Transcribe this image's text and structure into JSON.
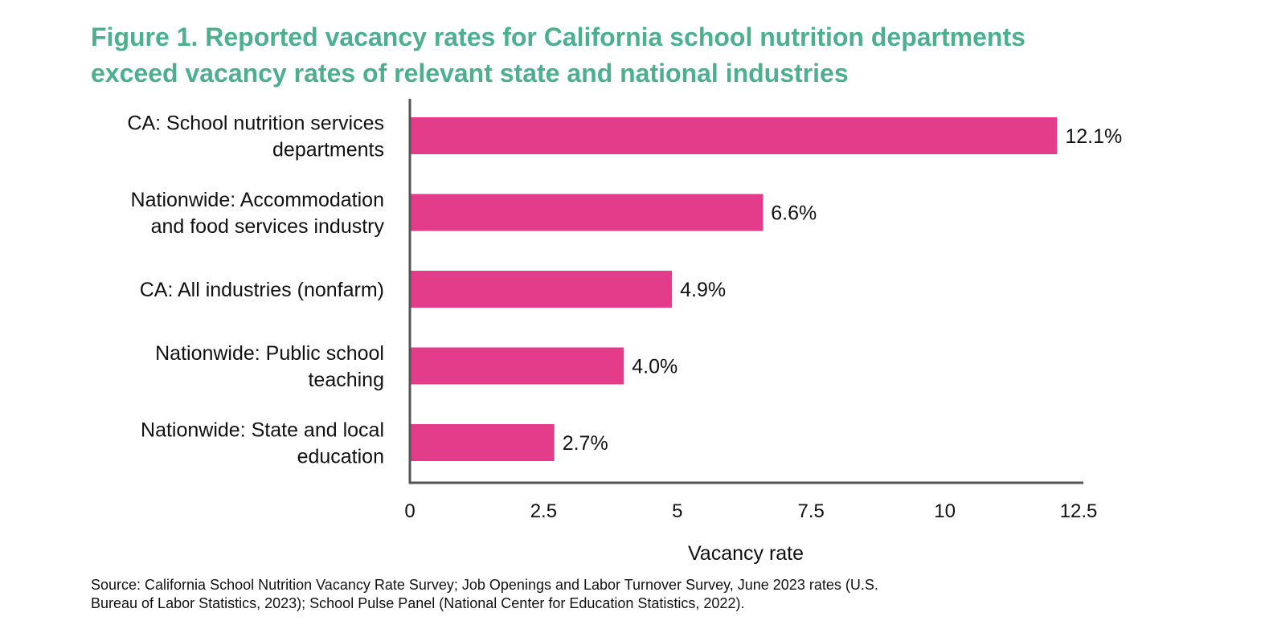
{
  "chart_data": {
    "type": "bar",
    "orientation": "horizontal",
    "title_lines": [
      "Figure 1. Reported vacancy rates for California school nutrition departments",
      "exceed vacancy rates of relevant state and national industries"
    ],
    "categories": [
      [
        "CA: School nutrition services",
        "departments"
      ],
      [
        "Nationwide: Accommodation",
        "and food services industry"
      ],
      [
        "CA: All industries (nonfarm)"
      ],
      [
        "Nationwide: Public school",
        "teaching"
      ],
      [
        "Nationwide: State and local",
        "education"
      ]
    ],
    "values": [
      12.1,
      6.6,
      4.9,
      4.0,
      2.7
    ],
    "data_labels": [
      "12.1%",
      "6.6%",
      "4.9%",
      "4.0%",
      "2.7%"
    ],
    "xlabel": "Vacancy rate",
    "xlim": [
      0,
      12.5
    ],
    "xticks": [
      0,
      2.5,
      5,
      7.5,
      10,
      12.5
    ],
    "xtick_labels": [
      "0",
      "2.5",
      "5",
      "7.5",
      "10",
      "12.5"
    ],
    "bar_color": "#e23c8b",
    "grid": false,
    "source_lines": [
      "Source: California School Nutrition Vacancy Rate Survey; Job Openings and Labor Turnover Survey, June 2023 rates (U.S.",
      "Bureau of Labor Statistics, 2023); School Pulse Panel (National Center for Education Statistics, 2022)."
    ]
  },
  "colors": {
    "title": "#4caf8e",
    "axis": "#555555",
    "text": "#111111"
  }
}
